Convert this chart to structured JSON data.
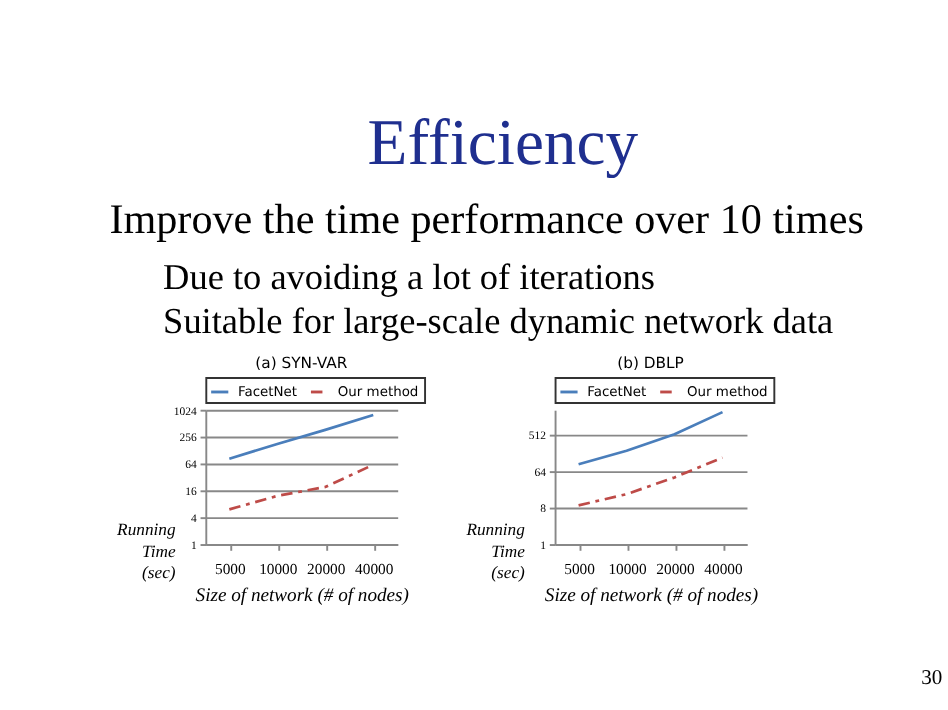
{
  "chart_data": [
    {
      "type": "line",
      "title": "(a) SYN-VAR",
      "xlabel": "Size of network (# of nodes)",
      "ylabel": "Running Time (sec)",
      "categories": [
        "5000",
        "10000",
        "20000",
        "40000"
      ],
      "log": "y",
      "ylim": [
        1,
        1024
      ],
      "yticks": [
        1,
        4,
        16,
        64,
        256,
        1024
      ],
      "grid": "y",
      "legend": "top",
      "annotations": [
        "Efficiency",
        "Improve the time performance over 10 times",
        "Due to avoiding a lot of iterations",
        "Suitable for large-scale dynamic network data",
        "30"
      ],
      "series": [
        {
          "name": "FacetNet",
          "color": "#4a7ebb",
          "line_style": "solid",
          "values": [
            82,
            175,
            362,
            780
          ]
        },
        {
          "name": "Our method",
          "color": "#be4b48",
          "line_style": "dashed",
          "values": [
            6,
            12,
            19,
            60
          ]
        }
      ]
    },
    {
      "type": "line",
      "title": "(b) DBLP",
      "xlabel": "Size of network (# of nodes)",
      "ylabel": "Running Time (sec)",
      "categories": [
        "5000",
        "10000",
        "20000",
        "40000"
      ],
      "log": "y",
      "ylim": [
        1,
        2048
      ],
      "yticks": [
        1,
        8,
        64,
        512
      ],
      "grid": "y",
      "legend": "top",
      "series": [
        {
          "name": "FacetNet",
          "color": "#4a7ebb",
          "line_style": "solid",
          "values": [
            93,
            200,
            512,
            1790
          ]
        },
        {
          "name": "Our method",
          "color": "#be4b48",
          "line_style": "dashed",
          "values": [
            9,
            17,
            44,
            135
          ]
        }
      ]
    }
  ]
}
